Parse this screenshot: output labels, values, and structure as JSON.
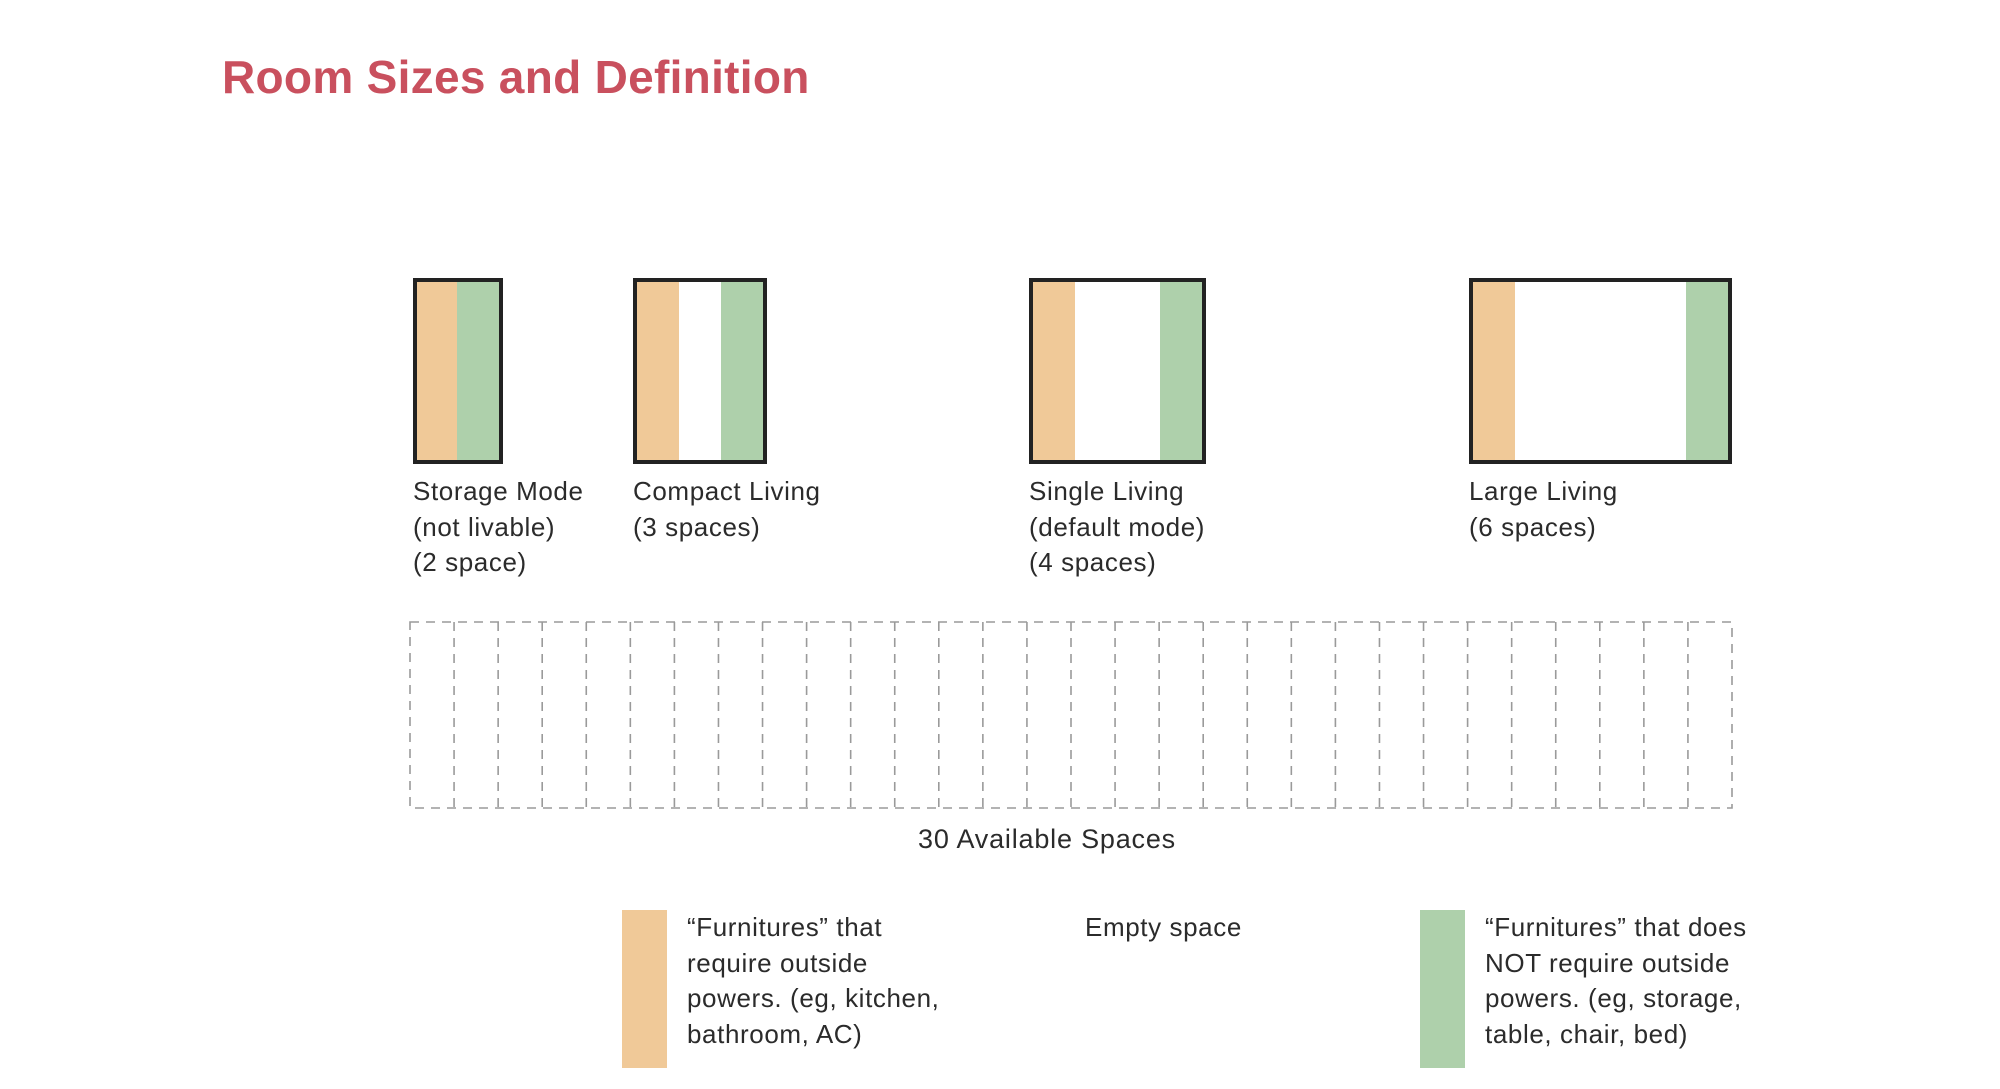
{
  "title": "Room Sizes and Definition",
  "colors": {
    "title": "#c9505e",
    "orange": "#f0c998",
    "green": "#aed0ab",
    "border": "#222222",
    "dashed": "#9a9a9a"
  },
  "rooms": [
    {
      "name": "Storage Mode",
      "lines": [
        "Storage Mode",
        "(not livable)",
        "(2 space)"
      ],
      "spaces": 2
    },
    {
      "name": "Compact Living",
      "lines": [
        "Compact Living",
        "(3 spaces)"
      ],
      "spaces": 3
    },
    {
      "name": "Single Living",
      "lines": [
        "Single Living",
        "(default mode)",
        "(4 spaces)"
      ],
      "spaces": 4
    },
    {
      "name": "Large Living",
      "lines": [
        "Large Living",
        "(6 spaces)"
      ],
      "spaces": 6
    }
  ],
  "available": {
    "count": 30,
    "caption": "30 Available Spaces"
  },
  "legend": {
    "orange": "“Furnitures” that\nrequire outside\npowers. (eg, kitchen,\nbathroom, AC)",
    "empty": "Empty space",
    "green": "“Furnitures” that does\nNOT require outside\npowers. (eg, storage,\ntable, chair, bed)"
  }
}
